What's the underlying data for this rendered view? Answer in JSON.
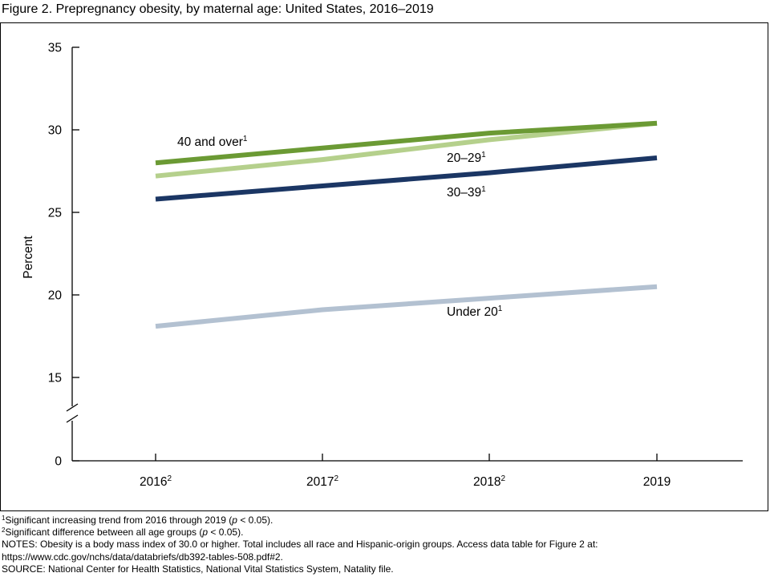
{
  "title": "Figure 2. Prepregnancy obesity, by maternal age: United States, 2016–2019",
  "chart_data": {
    "type": "line",
    "ylabel": "Percent",
    "xlabel": "",
    "y_ticks": [
      0,
      15,
      20,
      25,
      30,
      35
    ],
    "y_axis_break": "between 0 and 15",
    "grid": false,
    "x_ticks": [
      {
        "label": "2016",
        "sup": "2"
      },
      {
        "label": "2017",
        "sup": "2"
      },
      {
        "label": "2018",
        "sup": "2"
      },
      {
        "label": "2019",
        "sup": ""
      }
    ],
    "categories": [
      "2016",
      "2017",
      "2018",
      "2019"
    ],
    "series": [
      {
        "name": "Under 20",
        "sup": "1",
        "color": "#b3c1d1",
        "values": [
          18.1,
          19.1,
          19.8,
          20.5
        ]
      },
      {
        "name": "20–29",
        "sup": "1",
        "color": "#b5d08c",
        "values": [
          27.2,
          28.2,
          29.4,
          30.4
        ]
      },
      {
        "name": "30–39",
        "sup": "1",
        "color": "#1b3664",
        "values": [
          25.8,
          26.6,
          27.4,
          28.3
        ]
      },
      {
        "name": "40 and over",
        "sup": "1",
        "color": "#6b9a34",
        "values": [
          28.0,
          28.9,
          29.8,
          30.4
        ]
      }
    ]
  },
  "footnotes": {
    "note1": {
      "sup": "1",
      "before": "Significant increasing trend from 2016 through 2019 (",
      "italic": "p",
      "after": " < 0.05)."
    },
    "note2": {
      "sup": "2",
      "before": "Significant difference between all age groups (",
      "italic": "p",
      "after": " < 0.05)."
    },
    "notes_line1": "NOTES: Obesity is a body mass index of 30.0 or higher. Total includes all race and Hispanic-origin groups. Access data table for Figure 2 at:",
    "notes_line2": "https://www.cdc.gov/nchs/data/databriefs/db392-tables-508.pdf#2.",
    "source": "SOURCE: National Center for Health Statistics, National Vital Statistics System, Natality file."
  }
}
